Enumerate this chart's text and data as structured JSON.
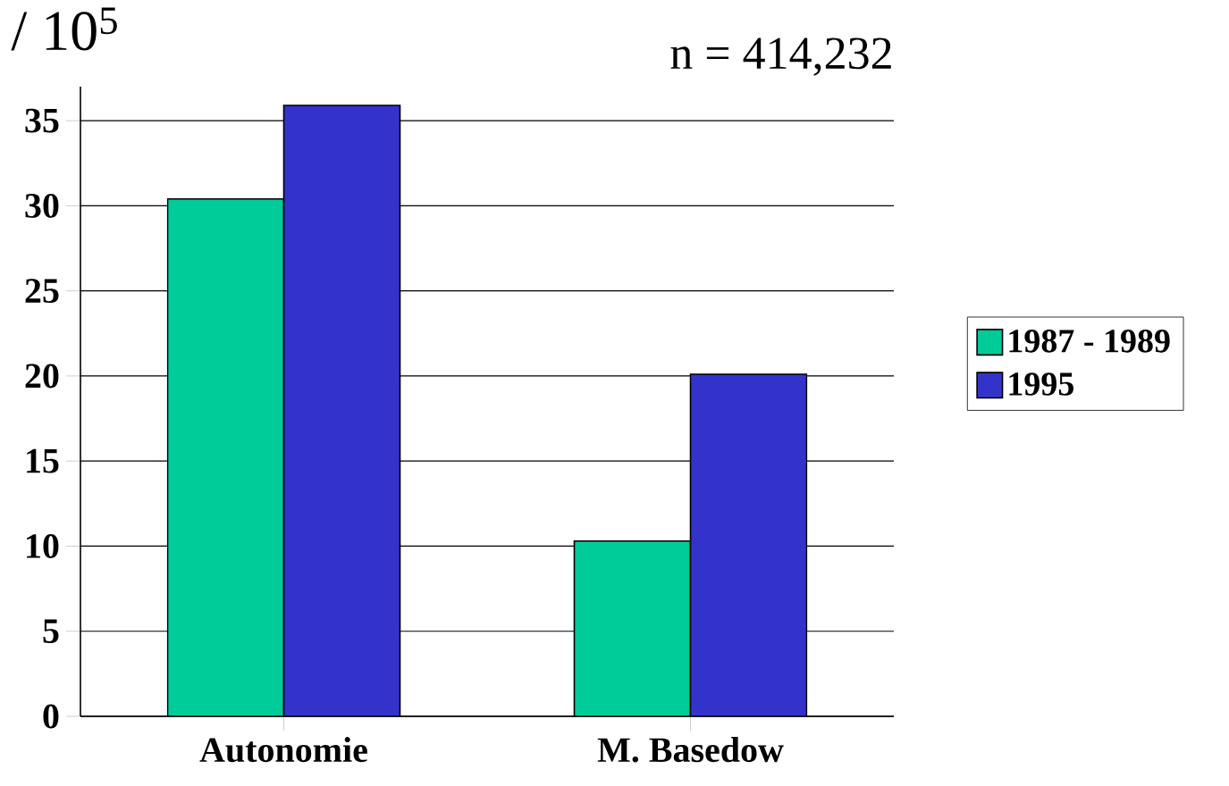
{
  "chart_data": {
    "type": "bar",
    "ylabel": "/ 10$^{5}$",
    "annotations": [
      "n = 414,232"
    ],
    "categories": [
      "Autonomie",
      "M. Basedow"
    ],
    "series": [
      {
        "name": "1987 - 1989",
        "color": "#00cc99",
        "values": [
          30.4,
          10.3
        ]
      },
      {
        "name": "1995",
        "color": "#3333cc",
        "values": [
          35.9,
          20.1
        ]
      }
    ],
    "ylim": [
      0,
      37
    ],
    "yticks": [
      0,
      5,
      10,
      15,
      20,
      25,
      30,
      35
    ],
    "grid": "y",
    "legend": "right"
  }
}
